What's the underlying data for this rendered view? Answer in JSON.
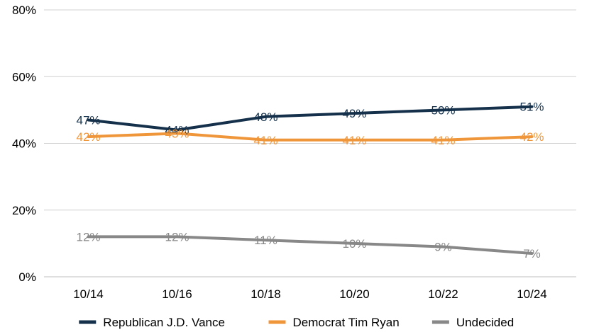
{
  "chart_data": {
    "type": "line",
    "categories": [
      "10/14",
      "10/16",
      "10/18",
      "10/20",
      "10/22",
      "10/24"
    ],
    "ylim": [
      0,
      80
    ],
    "yticks": [
      0,
      20,
      40,
      60,
      80
    ],
    "ytick_labels": [
      "0%",
      "20%",
      "40%",
      "60%",
      "80%"
    ],
    "grid": true,
    "legend_position": "bottom",
    "series": [
      {
        "name": "Republican J.D. Vance",
        "color": "#14304a",
        "values": [
          47,
          44,
          48,
          49,
          50,
          51
        ],
        "labels": [
          "47%",
          "44%",
          "48%",
          "49%",
          "50%",
          "51%"
        ]
      },
      {
        "name": "Democrat Tim Ryan",
        "color": "#f0963a",
        "values": [
          42,
          43,
          41,
          41,
          41,
          42
        ],
        "labels": [
          "42%",
          "43%",
          "41%",
          "41%",
          "41%",
          "42%"
        ]
      },
      {
        "name": "Undecided",
        "color": "#888888",
        "values": [
          12,
          12,
          11,
          10,
          9,
          7
        ],
        "labels": [
          "12%",
          "12%",
          "11%",
          "10%",
          "9%",
          "7%"
        ]
      }
    ]
  }
}
